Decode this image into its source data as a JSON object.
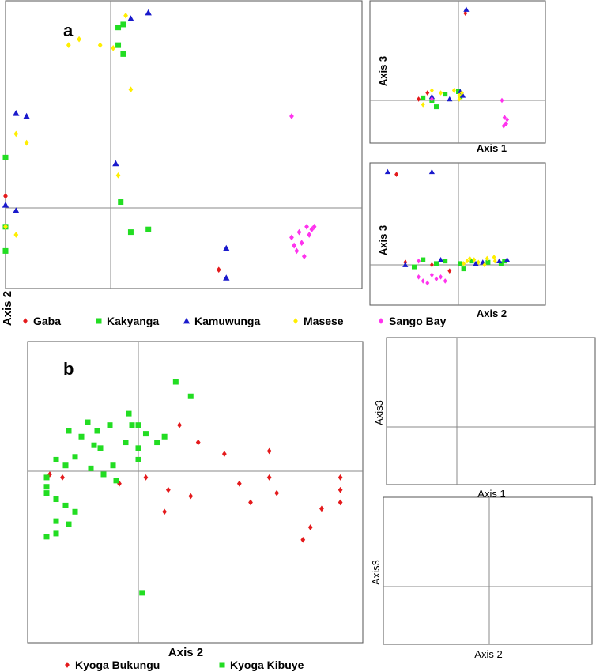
{
  "figure": {
    "panel_a_letter": "a",
    "panel_b_letter": "b",
    "axis2_vertical_label": "Axis 2"
  },
  "legend_a": [
    {
      "name": "Gaba",
      "color": "#e41a1c",
      "marker": "diamond"
    },
    {
      "name": "Kakyanga",
      "color": "#22dd22",
      "marker": "square"
    },
    {
      "name": "Kamuwunga",
      "color": "#1a1acc",
      "marker": "triangle"
    },
    {
      "name": "Masese",
      "color": "#ffee00",
      "marker": "diamond"
    },
    {
      "name": "Sango Bay",
      "color": "#ff33ee",
      "marker": "diamond"
    }
  ],
  "legend_b": [
    {
      "name": "Kyoga Bukungu",
      "color": "#e41a1c",
      "marker": "diamond"
    },
    {
      "name": "Kyoga Kibuye",
      "color": "#22dd22",
      "marker": "square"
    }
  ],
  "chart_data": [
    {
      "id": "a-main",
      "type": "scatter",
      "xlabel": "",
      "ylabel": "",
      "xlim": [
        -1,
        10
      ],
      "ylim": [
        -3,
        7
      ],
      "grid": false,
      "series": [
        {
          "name": "Gaba",
          "points": [
            [
              -1.3,
              0.7
            ],
            [
              -1.1,
              0.9
            ],
            [
              -1.2,
              0.3
            ],
            [
              -1.4,
              0.0
            ],
            [
              -1.2,
              -0.5
            ],
            [
              -1.3,
              -1.5
            ],
            [
              -1.1,
              -1.1
            ],
            [
              -1.0,
              0.4
            ],
            [
              -1.2,
              -0.8
            ],
            [
              4.3,
              -2.3
            ],
            [
              -1.2,
              -1.2
            ]
          ]
        },
        {
          "name": "Kakyanga",
          "points": [
            [
              0.3,
              6.1
            ],
            [
              0.5,
              6.2
            ],
            [
              0.3,
              5.5
            ],
            [
              0.5,
              5.2
            ],
            [
              -1.2,
              2.0
            ],
            [
              -1.0,
              1.7
            ],
            [
              -1.2,
              0.1
            ],
            [
              -1.3,
              -0.3
            ],
            [
              -1.1,
              -0.6
            ],
            [
              -1.2,
              -0.9
            ],
            [
              -1.0,
              -0.7
            ],
            [
              -1.3,
              -1.0
            ],
            [
              -1.1,
              -1.3
            ],
            [
              -1.2,
              -1.6
            ],
            [
              -1.0,
              -1.6
            ],
            [
              0.4,
              0.2
            ],
            [
              0.8,
              -0.9
            ],
            [
              1.5,
              -0.8
            ],
            [
              -1.1,
              -0.2
            ],
            [
              -1.2,
              -0.5
            ]
          ]
        },
        {
          "name": "Kamuwunga",
          "points": [
            [
              1.5,
              6.6
            ],
            [
              0.8,
              6.4
            ],
            [
              -0.9,
              3.2
            ],
            [
              -0.8,
              3.1
            ],
            [
              -1.1,
              2.7
            ],
            [
              -1.2,
              2.2
            ],
            [
              -1.1,
              1.7
            ],
            [
              -1.2,
              0.7
            ],
            [
              -1.0,
              0.1
            ],
            [
              -0.9,
              -0.1
            ],
            [
              -1.2,
              -1.1
            ],
            [
              -1.1,
              -2.1
            ],
            [
              0.2,
              1.5
            ],
            [
              4.6,
              -1.5
            ],
            [
              4.6,
              -2.6
            ],
            [
              -1.1,
              -0.5
            ]
          ]
        },
        {
          "name": "Masese",
          "points": [
            [
              -0.3,
              5.7
            ],
            [
              -0.4,
              5.5
            ],
            [
              -0.1,
              5.5
            ],
            [
              0.1,
              5.4
            ],
            [
              0.6,
              6.5
            ],
            [
              0.8,
              4.0
            ],
            [
              -0.9,
              2.5
            ],
            [
              -0.8,
              2.2
            ],
            [
              0.3,
              1.1
            ],
            [
              -1.2,
              0.6
            ],
            [
              -1.3,
              -0.1
            ],
            [
              -1.1,
              -0.3
            ],
            [
              -1.0,
              -0.7
            ],
            [
              -1.2,
              -0.9
            ],
            [
              -0.9,
              -1.0
            ]
          ]
        },
        {
          "name": "Sango Bay",
          "points": [
            [
              7.2,
              3.1
            ],
            [
              -1.2,
              2.2
            ],
            [
              -1.2,
              0.5
            ],
            [
              7.8,
              -0.7
            ],
            [
              8.1,
              -0.7
            ],
            [
              7.5,
              -0.9
            ],
            [
              7.9,
              -1.0
            ],
            [
              7.2,
              -1.1
            ],
            [
              7.6,
              -1.3
            ],
            [
              7.4,
              -1.6
            ],
            [
              7.7,
              -1.8
            ],
            [
              8.0,
              -0.8
            ],
            [
              7.3,
              -1.4
            ]
          ]
        }
      ]
    },
    {
      "id": "a-axis1-axis3",
      "type": "scatter",
      "xlabel": "Axis 1",
      "ylabel": "Axis 3",
      "xlim": [
        -2,
        10
      ],
      "ylim": [
        -2,
        8
      ],
      "grid": false,
      "series": [
        {
          "name": "Gaba",
          "points": [
            [
              0.8,
              7.0
            ],
            [
              -0.9,
              0.1
            ],
            [
              -0.7,
              0.6
            ]
          ]
        },
        {
          "name": "Kakyanga",
          "points": [
            [
              -0.8,
              0.2
            ],
            [
              -0.6,
              0.0
            ],
            [
              -0.3,
              0.5
            ],
            [
              0.0,
              0.7
            ],
            [
              -0.5,
              -0.3
            ],
            [
              0.2,
              0.3
            ]
          ]
        },
        {
          "name": "Kamuwunga",
          "points": [
            [
              0.9,
              7.3
            ],
            [
              -0.6,
              0.3
            ],
            [
              -0.2,
              0.1
            ],
            [
              0.5,
              0.4
            ],
            [
              0.2,
              0.7
            ]
          ]
        },
        {
          "name": "Masese",
          "points": [
            [
              -0.8,
              -0.2
            ],
            [
              -0.4,
              0.6
            ],
            [
              0.1,
              0.4
            ],
            [
              0.4,
              0.6
            ],
            [
              0.1,
              0.1
            ],
            [
              -0.6,
              0.8
            ],
            [
              -0.1,
              0.8
            ]
          ]
        },
        {
          "name": "Sango Bay",
          "points": [
            [
              5.0,
              0.0
            ],
            [
              5.3,
              -0.8
            ],
            [
              5.6,
              -0.9
            ],
            [
              5.4,
              -1.1
            ],
            [
              5.2,
              -1.2
            ],
            [
              5.5,
              -1.1
            ],
            [
              -0.6,
              0.1
            ]
          ]
        }
      ]
    },
    {
      "id": "a-axis2-axis3",
      "type": "scatter",
      "xlabel": "Axis 2",
      "ylabel": "Axis 3",
      "xlim": [
        -2,
        10
      ],
      "ylim": [
        -2,
        8
      ],
      "grid": false,
      "series": [
        {
          "name": "Gaba",
          "points": [
            [
              -1.4,
              7.1
            ],
            [
              -1.2,
              0.2
            ],
            [
              -0.6,
              0.0
            ],
            [
              -0.2,
              -0.3
            ]
          ]
        },
        {
          "name": "Kakyanga",
          "points": [
            [
              -1.0,
              -0.1
            ],
            [
              -0.5,
              0.1
            ],
            [
              -0.3,
              0.3
            ],
            [
              0.2,
              0.1
            ],
            [
              1.5,
              0.3
            ],
            [
              3.4,
              0.2
            ],
            [
              4.9,
              0.1
            ],
            [
              5.3,
              0.3
            ],
            [
              -0.8,
              0.4
            ],
            [
              0.6,
              -0.2
            ]
          ]
        },
        {
          "name": "Kamuwunga",
          "points": [
            [
              -1.6,
              7.3
            ],
            [
              -0.6,
              7.3
            ],
            [
              -1.2,
              0.0
            ],
            [
              -0.4,
              0.4
            ],
            [
              2.0,
              0.1
            ],
            [
              2.8,
              0.2
            ],
            [
              5.6,
              0.4
            ],
            [
              4.7,
              0.3
            ]
          ]
        },
        {
          "name": "Masese",
          "points": [
            [
              0.6,
              0.1
            ],
            [
              1.0,
              0.3
            ],
            [
              1.8,
              0.4
            ],
            [
              2.3,
              0.2
            ],
            [
              3.3,
              0.5
            ],
            [
              4.1,
              0.6
            ],
            [
              4.2,
              0.3
            ],
            [
              3.0,
              0.0
            ],
            [
              1.3,
              0.5
            ]
          ]
        },
        {
          "name": "Sango Bay",
          "points": [
            [
              -0.9,
              -0.6
            ],
            [
              -0.5,
              -0.7
            ],
            [
              -0.7,
              -0.9
            ],
            [
              -0.3,
              -0.8
            ],
            [
              -0.6,
              -0.5
            ],
            [
              -0.8,
              -0.8
            ],
            [
              -0.4,
              -0.6
            ],
            [
              -0.9,
              0.3
            ]
          ]
        }
      ]
    },
    {
      "id": "b-main",
      "type": "scatter",
      "xlabel": "Axis 2",
      "ylabel": "",
      "xlim": [
        -3.5,
        6
      ],
      "ylim": [
        -5.5,
        4.5
      ],
      "grid": false,
      "series": [
        {
          "name": "Kyoga Bukungu",
          "points": [
            [
              1.1,
              1.6
            ],
            [
              1.6,
              1.0
            ],
            [
              2.3,
              0.6
            ],
            [
              3.5,
              0.7
            ],
            [
              0.2,
              -0.2
            ],
            [
              -0.6,
              -0.4
            ],
            [
              -2.8,
              -0.1
            ],
            [
              -2.4,
              -0.2
            ],
            [
              0.8,
              -0.6
            ],
            [
              1.4,
              -0.8
            ],
            [
              0.7,
              -1.3
            ],
            [
              2.7,
              -0.4
            ],
            [
              3.0,
              -1.0
            ],
            [
              3.5,
              -0.2
            ],
            [
              3.7,
              -0.7
            ],
            [
              4.9,
              -1.2
            ],
            [
              4.6,
              -1.8
            ],
            [
              4.4,
              -2.2
            ],
            [
              5.4,
              -0.2
            ],
            [
              5.4,
              -0.6
            ],
            [
              5.4,
              -1.0
            ]
          ]
        },
        {
          "name": "Kyoga Kibuye",
          "points": [
            [
              1.0,
              3.1
            ],
            [
              1.4,
              2.6
            ],
            [
              -1.6,
              1.7
            ],
            [
              -1.3,
              1.4
            ],
            [
              -0.9,
              1.6
            ],
            [
              -0.2,
              1.6
            ],
            [
              0.2,
              1.3
            ],
            [
              0.5,
              1.0
            ],
            [
              0.7,
              1.2
            ],
            [
              -0.3,
              2.0
            ],
            [
              0.0,
              1.6
            ],
            [
              -2.2,
              1.4
            ],
            [
              -1.8,
              1.2
            ],
            [
              -1.4,
              0.9
            ],
            [
              -0.4,
              1.0
            ],
            [
              0.0,
              0.8
            ],
            [
              0.0,
              0.4
            ],
            [
              -1.2,
              0.8
            ],
            [
              -2.0,
              0.5
            ],
            [
              -2.6,
              0.4
            ],
            [
              -2.3,
              0.2
            ],
            [
              -1.5,
              0.1
            ],
            [
              -1.1,
              -0.1
            ],
            [
              -0.8,
              0.2
            ],
            [
              -0.7,
              -0.3
            ],
            [
              -2.9,
              -0.2
            ],
            [
              -2.9,
              -0.5
            ],
            [
              -2.9,
              -0.7
            ],
            [
              -2.6,
              -0.9
            ],
            [
              -2.3,
              -1.1
            ],
            [
              -2.0,
              -1.3
            ],
            [
              -2.6,
              -1.6
            ],
            [
              -2.2,
              -1.7
            ],
            [
              -2.6,
              -2.0
            ],
            [
              -2.9,
              -2.1
            ],
            [
              0.1,
              -3.9
            ]
          ]
        }
      ]
    },
    {
      "id": "b-axis1-axis3",
      "type": "scatter",
      "xlabel": "Axis 1",
      "ylabel": "Axis3",
      "xlim": [
        -1.5,
        3.5
      ],
      "ylim": [
        -2,
        3
      ]
    },
    {
      "id": "b-axis2-axis3",
      "type": "scatter",
      "xlabel": "Axis 2",
      "ylabel": "Axis3",
      "xlim": [
        -2,
        2
      ],
      "ylim": [
        -2,
        3
      ]
    }
  ]
}
